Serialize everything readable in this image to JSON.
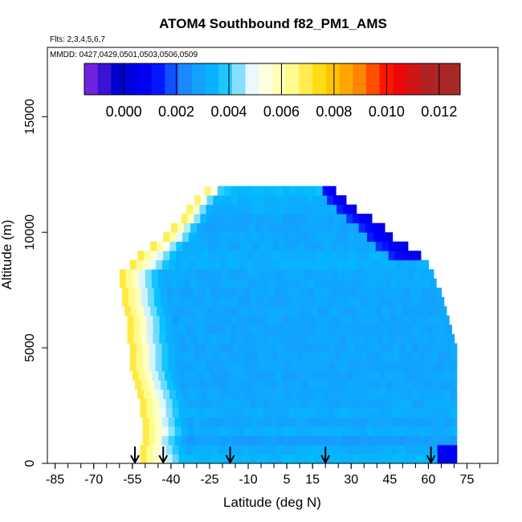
{
  "chart_data": {
    "type": "heatmap",
    "title": "ATOM4 Southbound f82_PM1_AMS",
    "flights_note": "Flts: 2,3,4,5,6,7",
    "dates_note": "MMDD: 0427,0429,0501,0503,0506,0509",
    "xlabel": "Latitude (deg N)",
    "ylabel": "Altitude (m)",
    "xlim": [
      -88,
      87
    ],
    "ylim": [
      0,
      18000
    ],
    "x_ticks": [
      -85,
      -70,
      -55,
      -40,
      -25,
      -10,
      5,
      15,
      30,
      45,
      60,
      75
    ],
    "x_tick_labels": [
      "-85",
      "-70",
      "-55",
      "-40",
      "-25",
      "-10",
      "5",
      "15",
      "30",
      "45",
      "60",
      "75"
    ],
    "x_minor_step": 5,
    "y_ticks": [
      0,
      5000,
      10000,
      15000
    ],
    "y_tick_labels": [
      "0",
      "5000",
      "10000",
      "15000"
    ],
    "colorbar": {
      "min": -0.0015,
      "max": 0.0128,
      "ticks": [
        0.0,
        0.002,
        0.004,
        0.006,
        0.008,
        0.01,
        0.012
      ],
      "tick_labels": [
        "0.000",
        "0.002",
        "0.004",
        "0.006",
        "0.008",
        "0.010",
        "0.012"
      ],
      "colors": [
        "#8a2be2",
        "#0000cd",
        "#0000ff",
        "#1e90ff",
        "#00bfff",
        "#ffffff",
        "#ffff99",
        "#ffd700",
        "#ff8c00",
        "#ff0000",
        "#b22222",
        "#a52a2a"
      ]
    },
    "profile_latitudes": [
      -54,
      -43,
      -17,
      20,
      61
    ],
    "curtain": [
      {
        "alt": [
          0,
          400
        ],
        "lat": [
          -52,
          71
        ],
        "base": 0.0035
      },
      {
        "alt": [
          400,
          800
        ],
        "lat": [
          -52,
          71
        ],
        "base": 0.0032
      },
      {
        "alt": [
          800,
          1200
        ],
        "lat": [
          -51,
          71
        ],
        "base": 0.0028
      },
      {
        "alt": [
          1200,
          1600
        ],
        "lat": [
          -51,
          71
        ],
        "base": 0.0032
      },
      {
        "alt": [
          1600,
          2000
        ],
        "lat": [
          -51,
          71
        ],
        "base": 0.003
      },
      {
        "alt": [
          2000,
          2400
        ],
        "lat": [
          -52,
          71
        ],
        "base": 0.0032
      },
      {
        "alt": [
          2400,
          2800
        ],
        "lat": [
          -52,
          71
        ],
        "base": 0.0031
      },
      {
        "alt": [
          2800,
          3200
        ],
        "lat": [
          -53,
          71
        ],
        "base": 0.0031
      },
      {
        "alt": [
          3200,
          3600
        ],
        "lat": [
          -54,
          71
        ],
        "base": 0.003
      },
      {
        "alt": [
          3600,
          4000
        ],
        "lat": [
          -55,
          71
        ],
        "base": 0.003
      },
      {
        "alt": [
          4000,
          4400
        ],
        "lat": [
          -56,
          71
        ],
        "base": 0.003
      },
      {
        "alt": [
          4400,
          4800
        ],
        "lat": [
          -56,
          71
        ],
        "base": 0.003
      },
      {
        "alt": [
          4800,
          5200
        ],
        "lat": [
          -56,
          71
        ],
        "base": 0.003
      },
      {
        "alt": [
          5200,
          5600
        ],
        "lat": [
          -57,
          70
        ],
        "base": 0.003
      },
      {
        "alt": [
          5600,
          6000
        ],
        "lat": [
          -57,
          69
        ],
        "base": 0.003
      },
      {
        "alt": [
          6000,
          6400
        ],
        "lat": [
          -57,
          68
        ],
        "base": 0.003
      },
      {
        "alt": [
          6400,
          6800
        ],
        "lat": [
          -58,
          67
        ],
        "base": 0.003
      },
      {
        "alt": [
          6800,
          7200
        ],
        "lat": [
          -59,
          66
        ],
        "base": 0.003
      },
      {
        "alt": [
          7200,
          7600
        ],
        "lat": [
          -59,
          65
        ],
        "base": 0.003
      },
      {
        "alt": [
          7600,
          8000
        ],
        "lat": [
          -60,
          63
        ],
        "base": 0.0031
      },
      {
        "alt": [
          8000,
          8400
        ],
        "lat": [
          -60,
          62
        ],
        "base": 0.0031
      },
      {
        "alt": [
          8400,
          8800
        ],
        "lat": [
          -56,
          60
        ],
        "base": 0.0033
      },
      {
        "alt": [
          8800,
          9200
        ],
        "lat": [
          -53,
          57
        ],
        "base": 0.0033
      },
      {
        "alt": [
          9200,
          9600
        ],
        "lat": [
          -48,
          52
        ],
        "base": 0.0031
      },
      {
        "alt": [
          9600,
          10000
        ],
        "lat": [
          -43,
          46
        ],
        "base": 0.0031
      },
      {
        "alt": [
          10000,
          10400
        ],
        "lat": [
          -40,
          43
        ],
        "base": 0.003
      },
      {
        "alt": [
          10400,
          10800
        ],
        "lat": [
          -36,
          38
        ],
        "base": 0.003
      },
      {
        "alt": [
          10800,
          11200
        ],
        "lat": [
          -34,
          32
        ],
        "base": 0.0032
      },
      {
        "alt": [
          11200,
          11600
        ],
        "lat": [
          -31,
          28
        ],
        "base": 0.0033
      },
      {
        "alt": [
          11600,
          12000
        ],
        "lat": [
          -27,
          24
        ],
        "base": 0.0036
      }
    ]
  }
}
